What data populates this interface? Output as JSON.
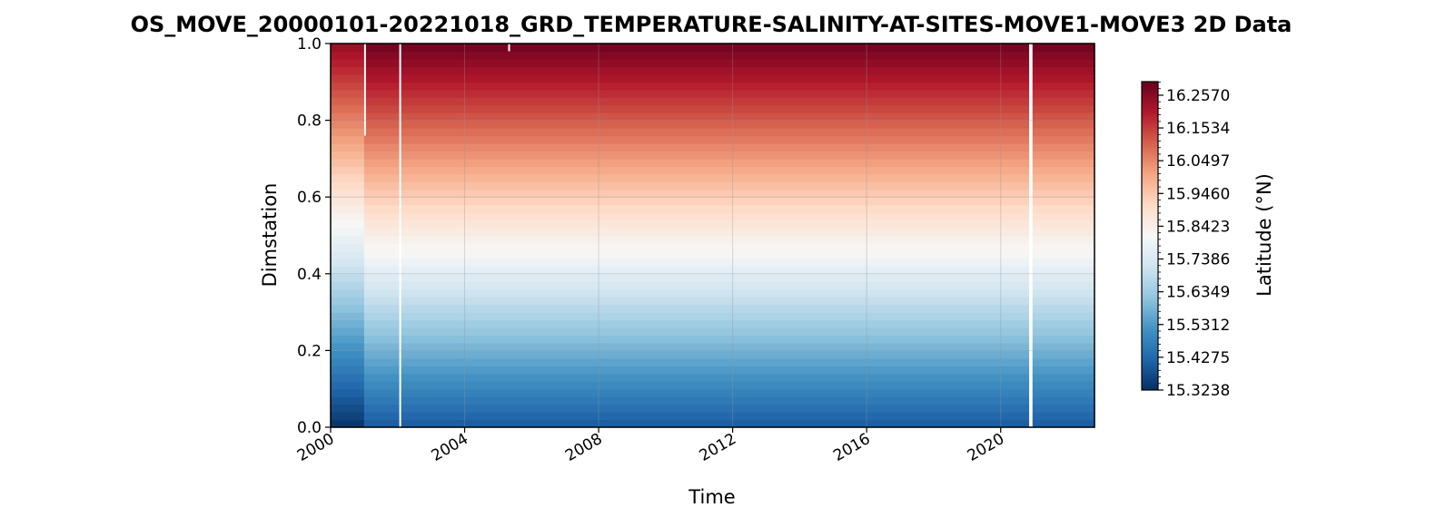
{
  "chart_data": {
    "type": "heatmap",
    "title": "OS_MOVE_20000101-20221018_GRD_TEMPERATURE-SALINITY-AT-SITES-MOVE1-MOVE3 2D Data",
    "xlabel": "Time",
    "ylabel": "Dimstation",
    "x_ticks": [
      "2000",
      "2004",
      "2008",
      "2012",
      "2016",
      "2020"
    ],
    "x_tick_values": [
      2000,
      2004,
      2008,
      2012,
      2016,
      2020
    ],
    "xlim": [
      2000.0,
      2022.8
    ],
    "y_ticks": [
      "0.0",
      "0.2",
      "0.4",
      "0.6",
      "0.8",
      "1.0"
    ],
    "y_tick_values": [
      0.0,
      0.2,
      0.4,
      0.6,
      0.8,
      1.0
    ],
    "ylim": [
      0.0,
      1.0
    ],
    "grid": true,
    "colormap": "RdBu_r",
    "colorbar": {
      "label": "Latitude (°N)",
      "ticks": [
        "15.3238",
        "15.4275",
        "15.5312",
        "15.6349",
        "15.7386",
        "15.8423",
        "15.9460",
        "16.0497",
        "16.1534",
        "16.2570"
      ],
      "tick_values": [
        15.3238,
        15.4275,
        15.5312,
        15.6349,
        15.7386,
        15.8423,
        15.946,
        16.0497,
        16.1534,
        16.257
      ],
      "vmin": 15.3238,
      "vmax": 16.3
    },
    "field": {
      "description_of_values": "Values increase linearly with Dimstation from bottom (~15.40) to top (~16.29); first year begins lower near 15.33",
      "rows": 50,
      "value_at_dim0": 15.4,
      "value_at_dim1": 16.29,
      "early_period_end": 2001.0,
      "early_value_at_dim0": 15.33,
      "early_value_at_dim1": 16.24
    },
    "gaps": [
      {
        "start": 2001.0,
        "end": 2001.03,
        "dim_from": 0.76,
        "dim_to": 1.0
      },
      {
        "start": 2002.05,
        "end": 2002.1,
        "dim_from": 0.0,
        "dim_to": 1.0
      },
      {
        "start": 2005.3,
        "end": 2005.35,
        "dim_from": 0.98,
        "dim_to": 1.0
      },
      {
        "start": 2020.85,
        "end": 2020.95,
        "dim_from": 0.0,
        "dim_to": 1.0
      }
    ],
    "colors": {
      "low": "#053061",
      "high": "#67001f",
      "mid": "#f7f7f7"
    }
  }
}
